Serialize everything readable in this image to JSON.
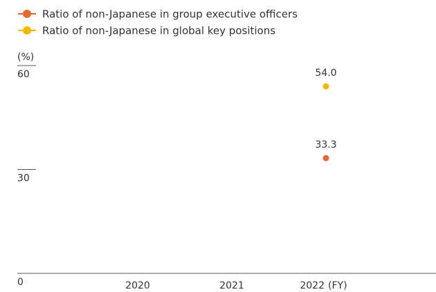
{
  "chart_data": {
    "type": "line",
    "categories": [
      "2020",
      "2021",
      "2022"
    ],
    "x_label": "(FY)",
    "y_label": "(%)",
    "series": [
      {
        "name": "Ratio of non-Japanese in group executive officers",
        "color": "#e8692e",
        "values": [
          null,
          null,
          33.3
        ]
      },
      {
        "name": "Ratio of non-Japanese in global key positions",
        "color": "#f5b800",
        "values": [
          null,
          null,
          54
        ],
        "value_labels": [
          null,
          null,
          "54.0"
        ]
      }
    ],
    "ylim": [
      0,
      60
    ],
    "yticks": [
      0,
      30,
      60
    ]
  }
}
